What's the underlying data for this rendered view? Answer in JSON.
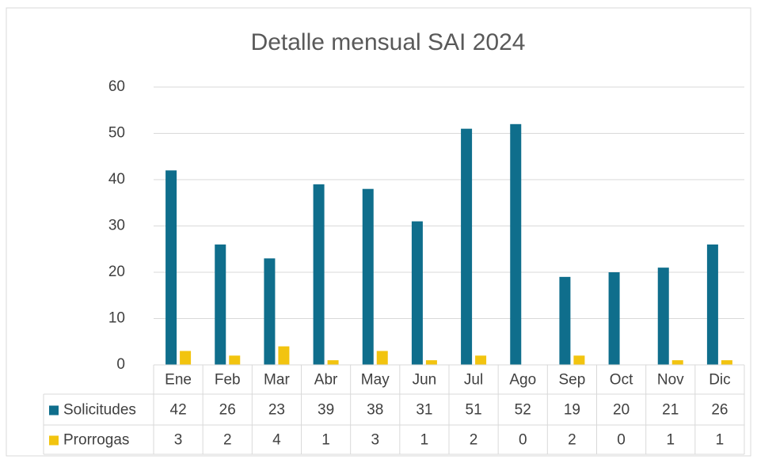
{
  "chart_data": {
    "type": "bar",
    "title": "Detalle mensual SAI 2024",
    "categories": [
      "Ene",
      "Feb",
      "Mar",
      "Abr",
      "May",
      "Jun",
      "Jul",
      "Ago",
      "Sep",
      "Oct",
      "Nov",
      "Dic"
    ],
    "series": [
      {
        "name": "Solicitudes",
        "color": "#0f6e8c",
        "values": [
          42,
          26,
          23,
          39,
          38,
          31,
          51,
          52,
          19,
          20,
          21,
          26
        ]
      },
      {
        "name": "Prorrogas",
        "color": "#f2c40f",
        "values": [
          3,
          2,
          4,
          1,
          3,
          1,
          2,
          0,
          2,
          0,
          1,
          1
        ]
      }
    ],
    "ylim": [
      0,
      60
    ],
    "yticks": [
      0,
      10,
      20,
      30,
      40,
      50,
      60
    ],
    "grid": true,
    "data_table": true
  }
}
